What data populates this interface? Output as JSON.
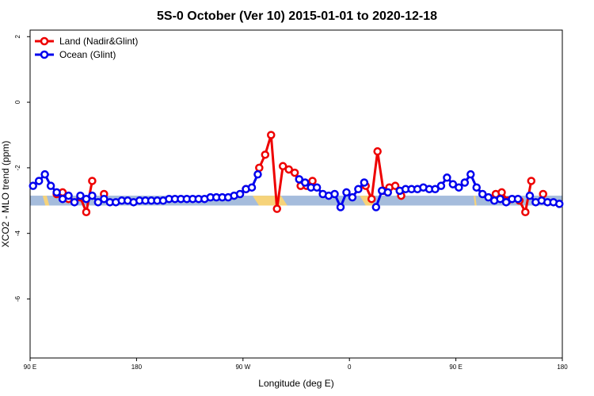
{
  "chart_data": {
    "type": "line",
    "title": "5S-0 October (Ver 10)   2015-01-01 to 2020-12-18",
    "xlabel": "Longitude (deg E)",
    "ylabel": "XCO2 - MLO trend (ppm)",
    "xlim": [
      90,
      450
    ],
    "ylim": [
      -7.8,
      2.2
    ],
    "x_ticks": [
      {
        "value": 90,
        "label": "90 E"
      },
      {
        "value": 162,
        "label": "180"
      },
      {
        "value": 234,
        "label": "90 W"
      },
      {
        "value": 306,
        "label": "0"
      },
      {
        "value": 378,
        "label": "90 E"
      },
      {
        "value": 450,
        "label": "180"
      }
    ],
    "y_ticks": [
      {
        "value": 2,
        "label": "2"
      },
      {
        "value": 0,
        "label": "0"
      },
      {
        "value": -2,
        "label": "-2"
      },
      {
        "value": -4,
        "label": "-4"
      },
      {
        "value": -6,
        "label": "-6"
      }
    ],
    "legend_position": "top-left",
    "band": {
      "ymin": -3.15,
      "ymax": -2.85,
      "ocean_color": "#a5bcdc",
      "land_color": "#f6d37a",
      "land_segments": [
        [
          98.5,
          103
        ],
        [
          240.5,
          264
        ],
        [
          313,
          323
        ],
        [
          390,
          392
        ]
      ]
    },
    "series": [
      {
        "name": "Land (Nadir&Glint)",
        "color": "#ee0000",
        "points": [
          [
            108,
            -2.8
          ],
          [
            112,
            -2.75
          ],
          [
            116,
            -2.95
          ],
          [
            124,
            -2.9
          ],
          [
            128,
            -3.35
          ],
          [
            132,
            -2.4
          ],
          [
            140,
            -2.8
          ],
          [
            236,
            -2.65
          ],
          [
            245,
            -2.0
          ],
          [
            249,
            -1.6
          ],
          [
            253,
            -1.0
          ],
          [
            257,
            -3.25
          ],
          [
            261,
            -1.95
          ],
          [
            265,
            -2.05
          ],
          [
            269,
            -2.15
          ],
          [
            273,
            -2.55
          ],
          [
            277,
            -2.55
          ],
          [
            281,
            -2.4
          ],
          [
            317,
            -2.55
          ],
          [
            321,
            -2.95
          ],
          [
            325,
            -1.5
          ],
          [
            329,
            -2.7
          ],
          [
            333,
            -2.6
          ],
          [
            337,
            -2.55
          ],
          [
            341,
            -2.85
          ],
          [
            405,
            -2.8
          ],
          [
            409,
            -2.75
          ],
          [
            413,
            -3.0
          ],
          [
            421,
            -3.0
          ],
          [
            425,
            -3.35
          ],
          [
            429,
            -2.4
          ],
          [
            437,
            -2.8
          ]
        ]
      },
      {
        "name": "Ocean (Glint)",
        "color": "#0000ee",
        "points": [
          [
            92,
            -2.55
          ],
          [
            96,
            -2.4
          ],
          [
            100,
            -2.2
          ],
          [
            104,
            -2.55
          ],
          [
            108,
            -2.75
          ],
          [
            112,
            -2.95
          ],
          [
            116,
            -2.85
          ],
          [
            120,
            -3.05
          ],
          [
            124,
            -2.85
          ],
          [
            128,
            -2.95
          ],
          [
            132,
            -2.85
          ],
          [
            136,
            -3.05
          ],
          [
            140,
            -2.95
          ],
          [
            144,
            -3.05
          ],
          [
            148,
            -3.05
          ],
          [
            152,
            -3.0
          ],
          [
            156,
            -3.0
          ],
          [
            160,
            -3.05
          ],
          [
            164,
            -3.0
          ],
          [
            168,
            -3.0
          ],
          [
            172,
            -3.0
          ],
          [
            176,
            -3.0
          ],
          [
            180,
            -3.0
          ],
          [
            184,
            -2.95
          ],
          [
            188,
            -2.95
          ],
          [
            192,
            -2.95
          ],
          [
            196,
            -2.95
          ],
          [
            200,
            -2.95
          ],
          [
            204,
            -2.95
          ],
          [
            208,
            -2.95
          ],
          [
            212,
            -2.9
          ],
          [
            216,
            -2.9
          ],
          [
            220,
            -2.9
          ],
          [
            224,
            -2.9
          ],
          [
            228,
            -2.85
          ],
          [
            232,
            -2.8
          ],
          [
            236,
            -2.65
          ],
          [
            240,
            -2.6
          ],
          [
            244,
            -2.2
          ],
          [
            272,
            -2.35
          ],
          [
            276,
            -2.45
          ],
          [
            280,
            -2.6
          ],
          [
            284,
            -2.6
          ],
          [
            288,
            -2.8
          ],
          [
            292,
            -2.85
          ],
          [
            296,
            -2.8
          ],
          [
            300,
            -3.2
          ],
          [
            304,
            -2.75
          ],
          [
            308,
            -2.9
          ],
          [
            312,
            -2.65
          ],
          [
            316,
            -2.45
          ],
          [
            324,
            -3.2
          ],
          [
            328,
            -2.7
          ],
          [
            332,
            -2.75
          ],
          [
            340,
            -2.7
          ],
          [
            344,
            -2.65
          ],
          [
            348,
            -2.65
          ],
          [
            352,
            -2.65
          ],
          [
            356,
            -2.6
          ],
          [
            360,
            -2.65
          ],
          [
            364,
            -2.65
          ],
          [
            368,
            -2.55
          ],
          [
            372,
            -2.3
          ],
          [
            376,
            -2.5
          ],
          [
            380,
            -2.6
          ],
          [
            384,
            -2.45
          ],
          [
            388,
            -2.2
          ],
          [
            392,
            -2.6
          ],
          [
            396,
            -2.8
          ],
          [
            400,
            -2.9
          ],
          [
            404,
            -3.0
          ],
          [
            408,
            -2.95
          ],
          [
            412,
            -3.05
          ],
          [
            416,
            -2.95
          ],
          [
            420,
            -2.95
          ],
          [
            428,
            -2.85
          ],
          [
            432,
            -3.05
          ],
          [
            436,
            -3.0
          ],
          [
            440,
            -3.05
          ],
          [
            444,
            -3.05
          ],
          [
            448,
            -3.1
          ]
        ]
      }
    ]
  }
}
